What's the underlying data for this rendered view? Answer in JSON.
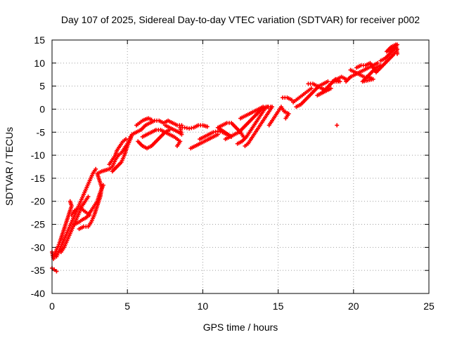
{
  "chart_data": {
    "type": "scatter",
    "title": "Day 107 of 2025, Sidereal Day-to-day VTEC variation (SDTVAR) for receiver p002",
    "xlabel": "GPS time / hours",
    "ylabel": "SDTVAR / TECUs",
    "xlim": [
      0,
      25
    ],
    "ylim": [
      -40,
      15
    ],
    "grid": true,
    "marker": "plus",
    "color": "#ff0000",
    "x_ticks": [
      "0",
      "5",
      "10",
      "15",
      "20",
      "25"
    ],
    "y_ticks": [
      "15",
      "10",
      "5",
      "0",
      "-5",
      "-10",
      "-15",
      "-20",
      "-25",
      "-30",
      "-35",
      "-40"
    ],
    "series": [
      {
        "name": "SDTVAR",
        "points": [
          [
            0.0,
            -34.5
          ],
          [
            0.15,
            -34.8
          ],
          [
            0.3,
            -35.2
          ],
          [
            0.0,
            -31.0
          ],
          [
            0.1,
            -32.5
          ],
          [
            0.2,
            -31.5
          ],
          [
            0.3,
            -30.5
          ],
          [
            0.4,
            -29.8
          ],
          [
            0.5,
            -29.0
          ],
          [
            0.6,
            -28.0
          ],
          [
            0.7,
            -27.0
          ],
          [
            0.8,
            -26.0
          ],
          [
            0.9,
            -25.0
          ],
          [
            1.0,
            -24.0
          ],
          [
            1.1,
            -23.0
          ],
          [
            1.2,
            -22.0
          ],
          [
            1.3,
            -21.0
          ],
          [
            1.2,
            -20.0
          ],
          [
            0.3,
            -32.0
          ],
          [
            0.5,
            -30.5
          ],
          [
            0.7,
            -29.0
          ],
          [
            0.9,
            -27.5
          ],
          [
            1.1,
            -26.0
          ],
          [
            1.3,
            -24.5
          ],
          [
            1.5,
            -23.0
          ],
          [
            1.7,
            -21.5
          ],
          [
            1.9,
            -20.0
          ],
          [
            2.1,
            -18.5
          ],
          [
            2.3,
            -17.0
          ],
          [
            2.5,
            -15.5
          ],
          [
            2.7,
            -14.0
          ],
          [
            2.9,
            -13.0
          ],
          [
            0.6,
            -31.0
          ],
          [
            0.8,
            -30.0
          ],
          [
            1.0,
            -28.5
          ],
          [
            1.2,
            -27.0
          ],
          [
            1.4,
            -25.5
          ],
          [
            1.6,
            -24.0
          ],
          [
            1.8,
            -22.5
          ],
          [
            2.0,
            -21.0
          ],
          [
            2.2,
            -20.0
          ],
          [
            2.4,
            -19.0
          ],
          [
            1.3,
            -23.0
          ],
          [
            1.5,
            -22.0
          ],
          [
            1.7,
            -21.5
          ],
          [
            1.9,
            -21.5
          ],
          [
            2.1,
            -22.0
          ],
          [
            2.3,
            -22.5
          ],
          [
            2.5,
            -23.0
          ],
          [
            1.5,
            -25.0
          ],
          [
            1.8,
            -24.5
          ],
          [
            2.0,
            -24.0
          ],
          [
            2.3,
            -23.5
          ],
          [
            2.6,
            -22.0
          ],
          [
            2.8,
            -21.0
          ],
          [
            3.0,
            -20.0
          ],
          [
            3.2,
            -18.0
          ],
          [
            3.4,
            -16.5
          ],
          [
            1.8,
            -26.0
          ],
          [
            2.1,
            -25.5
          ],
          [
            2.4,
            -25.5
          ],
          [
            2.6,
            -24.5
          ],
          [
            2.8,
            -23.0
          ],
          [
            3.0,
            -21.0
          ],
          [
            3.2,
            -19.0
          ],
          [
            3.3,
            -17.0
          ],
          [
            3.0,
            -14.0
          ],
          [
            3.3,
            -13.5
          ],
          [
            3.6,
            -13.2
          ],
          [
            3.8,
            -13.0
          ],
          [
            4.0,
            -12.5
          ],
          [
            4.2,
            -11.0
          ],
          [
            4.4,
            -10.0
          ],
          [
            4.6,
            -9.5
          ],
          [
            4.8,
            -8.5
          ],
          [
            5.0,
            -7.5
          ],
          [
            5.2,
            -6.0
          ],
          [
            3.8,
            -12.0
          ],
          [
            4.0,
            -11.0
          ],
          [
            4.2,
            -10.0
          ],
          [
            4.3,
            -9.0
          ],
          [
            4.5,
            -8.0
          ],
          [
            4.7,
            -7.0
          ],
          [
            4.9,
            -6.5
          ],
          [
            4.0,
            -13.5
          ],
          [
            4.3,
            -12.5
          ],
          [
            4.6,
            -11.5
          ],
          [
            4.8,
            -10.0
          ],
          [
            5.0,
            -8.0
          ],
          [
            5.2,
            -6.5
          ],
          [
            5.3,
            -5.5
          ],
          [
            5.6,
            -5.0
          ],
          [
            5.9,
            -4.5
          ],
          [
            6.2,
            -3.5
          ],
          [
            6.5,
            -3.0
          ],
          [
            6.8,
            -2.5
          ],
          [
            7.1,
            -2.5
          ],
          [
            7.4,
            -3.0
          ],
          [
            7.7,
            -2.5
          ],
          [
            8.0,
            -3.0
          ],
          [
            8.3,
            -3.5
          ],
          [
            8.6,
            -3.5
          ],
          [
            5.6,
            -3.5
          ],
          [
            5.8,
            -3.0
          ],
          [
            6.0,
            -2.5
          ],
          [
            6.2,
            -2.2
          ],
          [
            6.4,
            -2.0
          ],
          [
            6.6,
            -2.3
          ],
          [
            5.7,
            -7.0
          ],
          [
            6.0,
            -8.0
          ],
          [
            6.3,
            -8.5
          ],
          [
            6.6,
            -8.0
          ],
          [
            6.9,
            -7.0
          ],
          [
            7.2,
            -6.0
          ],
          [
            7.5,
            -5.0
          ],
          [
            7.8,
            -4.5
          ],
          [
            6.0,
            -6.0
          ],
          [
            6.3,
            -5.5
          ],
          [
            6.6,
            -5.0
          ],
          [
            6.9,
            -4.5
          ],
          [
            7.2,
            -4.5
          ],
          [
            7.5,
            -5.0
          ],
          [
            7.8,
            -5.5
          ],
          [
            8.1,
            -6.0
          ],
          [
            8.3,
            -6.5
          ],
          [
            8.5,
            -7.0
          ],
          [
            8.3,
            -8.0
          ],
          [
            7.5,
            -3.5
          ],
          [
            7.8,
            -4.0
          ],
          [
            8.1,
            -4.5
          ],
          [
            8.4,
            -5.0
          ],
          [
            8.6,
            -5.5
          ],
          [
            8.5,
            -4.0
          ],
          [
            8.8,
            -4.0
          ],
          [
            9.1,
            -4.2
          ],
          [
            9.4,
            -4.0
          ],
          [
            9.7,
            -3.5
          ],
          [
            10.0,
            -3.5
          ],
          [
            10.3,
            -3.8
          ],
          [
            9.2,
            -8.5
          ],
          [
            9.5,
            -8.0
          ],
          [
            9.8,
            -7.5
          ],
          [
            10.1,
            -7.0
          ],
          [
            10.4,
            -6.5
          ],
          [
            10.7,
            -6.0
          ],
          [
            11.0,
            -5.5
          ],
          [
            9.8,
            -6.5
          ],
          [
            10.1,
            -6.0
          ],
          [
            10.4,
            -5.5
          ],
          [
            10.7,
            -5.0
          ],
          [
            11.0,
            -4.8
          ],
          [
            11.3,
            -5.0
          ],
          [
            11.6,
            -5.5
          ],
          [
            11.9,
            -6.0
          ],
          [
            11.0,
            -4.0
          ],
          [
            11.3,
            -3.5
          ],
          [
            11.6,
            -3.0
          ],
          [
            11.9,
            -3.0
          ],
          [
            12.2,
            -4.0
          ],
          [
            12.5,
            -5.0
          ],
          [
            12.7,
            -6.0
          ],
          [
            11.5,
            -6.5
          ],
          [
            11.8,
            -6.0
          ],
          [
            12.1,
            -5.5
          ],
          [
            12.4,
            -5.0
          ],
          [
            12.7,
            -4.0
          ],
          [
            13.0,
            -3.0
          ],
          [
            13.3,
            -2.0
          ],
          [
            13.6,
            -1.0
          ],
          [
            13.9,
            0.0
          ],
          [
            14.2,
            0.5
          ],
          [
            14.5,
            0.5
          ],
          [
            12.3,
            -7.5
          ],
          [
            12.6,
            -7.0
          ],
          [
            12.9,
            -6.0
          ],
          [
            13.1,
            -5.0
          ],
          [
            13.3,
            -4.0
          ],
          [
            13.5,
            -3.0
          ],
          [
            13.7,
            -2.0
          ],
          [
            13.9,
            -1.0
          ],
          [
            14.1,
            0.0
          ],
          [
            14.3,
            0.5
          ],
          [
            12.8,
            -8.0
          ],
          [
            13.0,
            -7.5
          ],
          [
            13.2,
            -6.5
          ],
          [
            13.4,
            -5.5
          ],
          [
            13.6,
            -4.5
          ],
          [
            13.8,
            -3.5
          ],
          [
            14.0,
            -2.5
          ],
          [
            14.2,
            -1.5
          ],
          [
            14.4,
            -0.5
          ],
          [
            14.6,
            0.5
          ],
          [
            12.5,
            -2.0
          ],
          [
            12.8,
            -1.5
          ],
          [
            13.1,
            -1.0
          ],
          [
            13.4,
            -0.5
          ],
          [
            13.7,
            0.0
          ],
          [
            14.0,
            0.5
          ],
          [
            14.4,
            -3.5
          ],
          [
            14.6,
            -2.5
          ],
          [
            14.8,
            -1.5
          ],
          [
            15.0,
            -0.5
          ],
          [
            15.2,
            0.5
          ],
          [
            15.4,
            -0.5
          ],
          [
            15.7,
            -1.0
          ],
          [
            15.5,
            -2.0
          ],
          [
            15.3,
            2.5
          ],
          [
            15.6,
            2.5
          ],
          [
            15.9,
            2.0
          ],
          [
            16.0,
            1.5
          ],
          [
            16.2,
            2.0
          ],
          [
            16.4,
            2.5
          ],
          [
            16.6,
            3.0
          ],
          [
            16.8,
            3.5
          ],
          [
            17.0,
            4.0
          ],
          [
            17.2,
            4.5
          ],
          [
            16.2,
            0.5
          ],
          [
            16.5,
            1.0
          ],
          [
            16.8,
            2.0
          ],
          [
            17.1,
            3.0
          ],
          [
            17.4,
            4.0
          ],
          [
            17.7,
            5.0
          ],
          [
            18.0,
            5.5
          ],
          [
            18.3,
            6.0
          ],
          [
            17.0,
            5.5
          ],
          [
            17.3,
            5.5
          ],
          [
            17.6,
            5.0
          ],
          [
            17.9,
            4.5
          ],
          [
            18.2,
            4.0
          ],
          [
            18.5,
            4.5
          ],
          [
            17.6,
            3.0
          ],
          [
            17.9,
            3.5
          ],
          [
            18.2,
            4.5
          ],
          [
            18.5,
            5.5
          ],
          [
            18.8,
            6.5
          ],
          [
            19.1,
            6.0
          ],
          [
            18.6,
            6.0
          ],
          [
            18.9,
            6.5
          ],
          [
            19.2,
            7.0
          ],
          [
            19.5,
            6.5
          ],
          [
            18.9,
            -3.5
          ],
          [
            19.5,
            6.0
          ],
          [
            19.8,
            7.0
          ],
          [
            20.1,
            7.5
          ],
          [
            20.4,
            8.0
          ],
          [
            20.7,
            8.5
          ],
          [
            21.0,
            9.0
          ],
          [
            21.3,
            9.5
          ],
          [
            21.6,
            10.0
          ],
          [
            19.8,
            8.5
          ],
          [
            20.1,
            8.0
          ],
          [
            20.4,
            7.5
          ],
          [
            20.7,
            7.0
          ],
          [
            21.0,
            7.0
          ],
          [
            21.3,
            6.5
          ],
          [
            20.6,
            6.0
          ],
          [
            20.9,
            7.0
          ],
          [
            21.2,
            8.0
          ],
          [
            21.5,
            9.0
          ],
          [
            21.8,
            9.5
          ],
          [
            20.2,
            9.0
          ],
          [
            20.5,
            9.5
          ],
          [
            20.8,
            9.5
          ],
          [
            21.1,
            10.0
          ],
          [
            21.5,
            8.0
          ],
          [
            21.8,
            9.0
          ],
          [
            22.1,
            10.0
          ],
          [
            22.4,
            11.0
          ],
          [
            22.7,
            12.0
          ],
          [
            22.9,
            13.0
          ],
          [
            21.8,
            10.5
          ],
          [
            22.1,
            11.0
          ],
          [
            22.4,
            12.0
          ],
          [
            22.7,
            13.0
          ],
          [
            22.9,
            14.0
          ],
          [
            22.2,
            12.5
          ],
          [
            22.5,
            13.5
          ],
          [
            22.8,
            14.0
          ],
          [
            22.9,
            12.0
          ]
        ]
      }
    ]
  }
}
